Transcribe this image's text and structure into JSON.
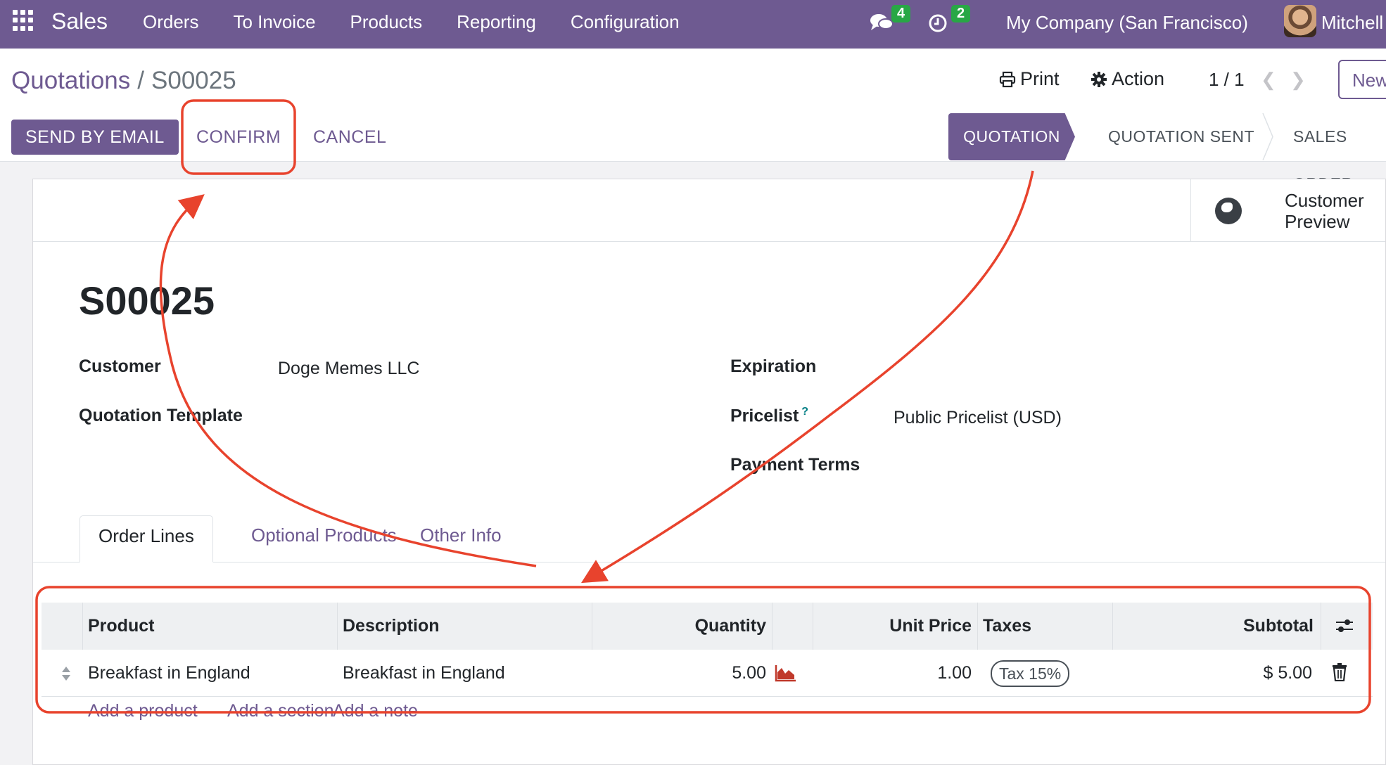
{
  "navbar": {
    "app": "Sales",
    "menu": [
      "Orders",
      "To Invoice",
      "Products",
      "Reporting",
      "Configuration"
    ],
    "messages_count": "4",
    "activities_count": "2",
    "company": "My Company (San Francisco)",
    "user": "Mitchell"
  },
  "control": {
    "breadcrumb_parent": "Quotations",
    "breadcrumb_sep": "/",
    "breadcrumb_current": "S00025",
    "print_label": "Print",
    "action_label": "Action",
    "pager": "1 / 1",
    "new_label": "New"
  },
  "statusbar": {
    "send_email": "SEND BY EMAIL",
    "confirm": "CONFIRM",
    "cancel": "CANCEL",
    "stages": [
      "QUOTATION",
      "QUOTATION SENT",
      "SALES ORDER"
    ],
    "active_stage": "QUOTATION"
  },
  "sheet": {
    "customer_preview": "Customer Preview",
    "title": "S00025",
    "fields": {
      "customer_label": "Customer",
      "customer_value": "Doge Memes LLC",
      "template_label": "Quotation Template",
      "expiration_label": "Expiration",
      "pricelist_label": "Pricelist",
      "pricelist_help": "?",
      "pricelist_value": "Public Pricelist (USD)",
      "payment_terms_label": "Payment Terms"
    },
    "tabs": [
      "Order Lines",
      "Optional Products",
      "Other Info"
    ],
    "table": {
      "headers": [
        "Product",
        "Description",
        "Quantity",
        "Unit Price",
        "Taxes",
        "Subtotal"
      ],
      "rows": [
        {
          "product": "Breakfast in England",
          "description": "Breakfast in England",
          "quantity": "5.00",
          "unit_price": "1.00",
          "tax": "Tax 15%",
          "subtotal": "$ 5.00"
        }
      ],
      "add_links": [
        "Add a product",
        "Add a section",
        "Add a note"
      ]
    }
  },
  "colors": {
    "brand": "#6e5a91",
    "annotation": "#e8432d",
    "badge": "#28a745"
  }
}
